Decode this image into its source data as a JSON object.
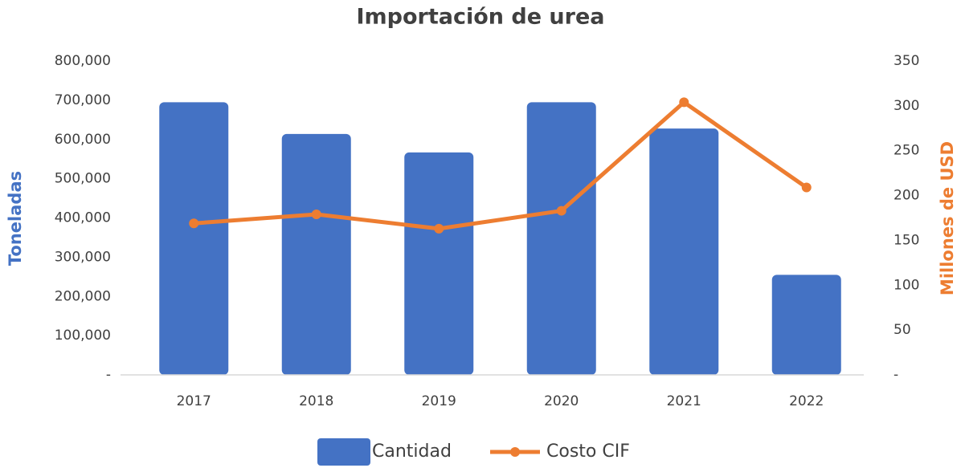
{
  "chart_data": {
    "type": "bar_line",
    "title": "Importación de urea",
    "categories": [
      "2017",
      "2018",
      "2019",
      "2020",
      "2021",
      "2022"
    ],
    "series": [
      {
        "name": "Cantidad",
        "type": "bar",
        "color": "#4472c4",
        "values": [
          695000,
          614000,
          567000,
          695000,
          628000,
          255000
        ]
      },
      {
        "name": "Costo CIF",
        "type": "line",
        "axis": "y2",
        "color": "#ed7d31",
        "values": [
          169,
          179,
          163,
          183,
          304,
          209
        ]
      }
    ],
    "ylabel": "Toneladas",
    "y2label": "Millones de USD",
    "ylim": [
      0,
      800000
    ],
    "yticks": [
      {
        "value": 0,
        "label": "-"
      },
      {
        "value": 100000,
        "label": "100,000"
      },
      {
        "value": 200000,
        "label": "200,000"
      },
      {
        "value": 300000,
        "label": "300,000"
      },
      {
        "value": 400000,
        "label": "400,000"
      },
      {
        "value": 500000,
        "label": "500,000"
      },
      {
        "value": 600000,
        "label": "600,000"
      },
      {
        "value": 700000,
        "label": "700,000"
      },
      {
        "value": 800000,
        "label": "800,000"
      }
    ],
    "y2lim": [
      0,
      350
    ],
    "y2ticks": [
      {
        "value": 0,
        "label": "-"
      },
      50,
      100,
      150,
      200,
      250,
      300,
      350
    ],
    "legend": "bottom",
    "grid": false
  }
}
